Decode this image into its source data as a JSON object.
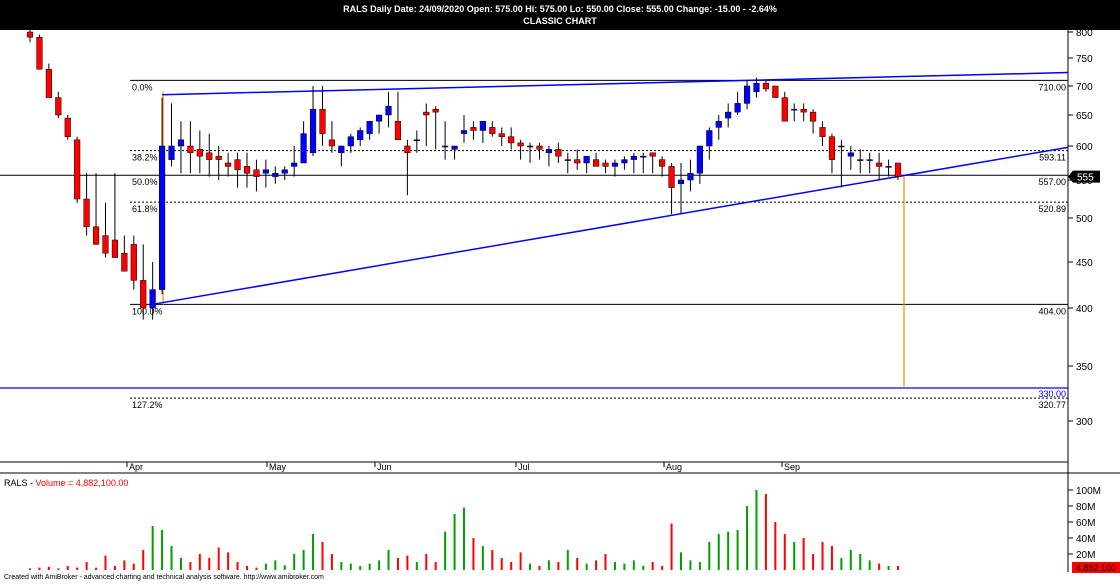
{
  "header": {
    "line1": "RALS Daily  Date: 24/09/2020  Open:  575.00  Hi:  575.00  Lo:  550.00  Close:  555.00  Change:  -15.00 - -2.64%",
    "line2": "CLASSIC CHART"
  },
  "volume_panel": {
    "symbol": "RALS - ",
    "label": "Volume = 4,882,100.00",
    "last_value": "4,882,100",
    "ticks": [
      "100M",
      "80M",
      "60M",
      "40M",
      "20M"
    ]
  },
  "footer": "Created with AmiBroker - advanced charting and technical analysis software. http://www.amibroker.com",
  "colors": {
    "up": "#0000ff",
    "down": "#ff0000",
    "vol_up": "#00a000",
    "vol_down": "#ff0000",
    "fib": "#000000",
    "trend": "#0000ff",
    "marker": "#ff8800"
  },
  "chart_data": {
    "type": "candlestick",
    "title": "RALS Daily",
    "subtitle": "CLASSIC CHART",
    "x_labels": [
      "Apr",
      "May",
      "Jun",
      "Jul",
      "Aug",
      "Sep"
    ],
    "y_ticks": [
      300,
      350,
      400,
      450,
      500,
      550,
      600,
      650,
      700,
      750,
      800
    ],
    "ylim": [
      255,
      815
    ],
    "last_close": "555",
    "fib_levels": [
      {
        "pct": "0.0%",
        "value": "710.00"
      },
      {
        "pct": "38.2%",
        "value": "593.11"
      },
      {
        "pct": "50.0%",
        "value": "557.00"
      },
      {
        "pct": "61.8%",
        "value": "520.89"
      },
      {
        "pct": "100.0%",
        "value": "404.00"
      },
      {
        "pct": "127.2%",
        "value": "320.77"
      }
    ],
    "support_level": "330.00",
    "ohlc_open": [
      800,
      790,
      730,
      680,
      645,
      610,
      525,
      490,
      480,
      475,
      460,
      470,
      430,
      400,
      420,
      580,
      600,
      600,
      595,
      590,
      585,
      575,
      580,
      570,
      565,
      560,
      555,
      560,
      570,
      575,
      590,
      660,
      610,
      590,
      600,
      610,
      620,
      640,
      650,
      640,
      600,
      610,
      655,
      660,
      600,
      595,
      620,
      630,
      625,
      630,
      620,
      615,
      605,
      600,
      600,
      590,
      595,
      580,
      580,
      575,
      580,
      575,
      570,
      575,
      580,
      585,
      590,
      580,
      570,
      545,
      550,
      560,
      600,
      630,
      645,
      655,
      670,
      690,
      705,
      700,
      680,
      660,
      660,
      655,
      630,
      615,
      600,
      585,
      580,
      580,
      575,
      570,
      575
    ],
    "ohlc_high": [
      810,
      795,
      740,
      690,
      650,
      615,
      560,
      560,
      520,
      560,
      480,
      480,
      470,
      450,
      680,
      670,
      640,
      640,
      625,
      620,
      600,
      590,
      590,
      590,
      580,
      580,
      570,
      570,
      600,
      640,
      700,
      700,
      640,
      600,
      620,
      630,
      640,
      650,
      690,
      690,
      610,
      625,
      670,
      665,
      640,
      600,
      650,
      640,
      640,
      640,
      630,
      630,
      610,
      605,
      605,
      600,
      605,
      590,
      595,
      580,
      590,
      580,
      580,
      585,
      590,
      590,
      590,
      585,
      575,
      575,
      580,
      600,
      630,
      650,
      670,
      690,
      710,
      715,
      710,
      700,
      690,
      670,
      670,
      660,
      640,
      620,
      610,
      600,
      595,
      590,
      590,
      580,
      575
    ],
    "ohlc_low": [
      780,
      745,
      680,
      645,
      610,
      520,
      480,
      475,
      455,
      460,
      440,
      420,
      390,
      390,
      415,
      570,
      560,
      560,
      560,
      555,
      550,
      555,
      540,
      540,
      535,
      540,
      545,
      550,
      555,
      575,
      585,
      600,
      590,
      570,
      590,
      600,
      610,
      620,
      630,
      620,
      530,
      590,
      600,
      595,
      580,
      580,
      605,
      610,
      605,
      615,
      600,
      595,
      580,
      575,
      580,
      570,
      575,
      560,
      565,
      560,
      570,
      560,
      555,
      565,
      560,
      560,
      560,
      555,
      505,
      505,
      535,
      545,
      580,
      610,
      630,
      650,
      660,
      680,
      690,
      680,
      640,
      640,
      640,
      620,
      600,
      560,
      540,
      565,
      560,
      560,
      550,
      555,
      550
    ],
    "ohlc_close": [
      790,
      730,
      680,
      650,
      615,
      525,
      490,
      470,
      460,
      455,
      440,
      430,
      400,
      420,
      600,
      600,
      610,
      590,
      585,
      580,
      580,
      570,
      565,
      560,
      555,
      565,
      560,
      565,
      575,
      620,
      660,
      620,
      600,
      600,
      615,
      625,
      640,
      650,
      665,
      610,
      590,
      610,
      650,
      655,
      600,
      600,
      625,
      625,
      640,
      620,
      615,
      605,
      600,
      600,
      595,
      595,
      585,
      580,
      575,
      585,
      570,
      570,
      575,
      580,
      585,
      585,
      585,
      570,
      540,
      550,
      560,
      600,
      625,
      640,
      655,
      670,
      700,
      705,
      695,
      680,
      640,
      660,
      655,
      640,
      615,
      580,
      600,
      590,
      580,
      580,
      570,
      570,
      555
    ],
    "volume_millions": [
      2,
      3,
      4,
      2,
      5,
      3,
      10,
      3,
      18,
      5,
      12,
      8,
      25,
      55,
      50,
      30,
      15,
      10,
      20,
      15,
      28,
      22,
      10,
      5,
      3,
      8,
      12,
      6,
      20,
      25,
      45,
      35,
      20,
      10,
      8,
      5,
      8,
      12,
      25,
      15,
      18,
      10,
      20,
      10,
      48,
      70,
      78,
      40,
      30,
      25,
      15,
      10,
      22,
      8,
      5,
      12,
      10,
      25,
      15,
      8,
      12,
      20,
      10,
      8,
      12,
      5,
      10,
      5,
      58,
      22,
      12,
      10,
      35,
      45,
      48,
      50,
      80,
      100,
      95,
      60,
      45,
      35,
      40,
      20,
      35,
      30,
      15,
      25,
      20,
      12,
      8,
      5,
      5
    ]
  }
}
